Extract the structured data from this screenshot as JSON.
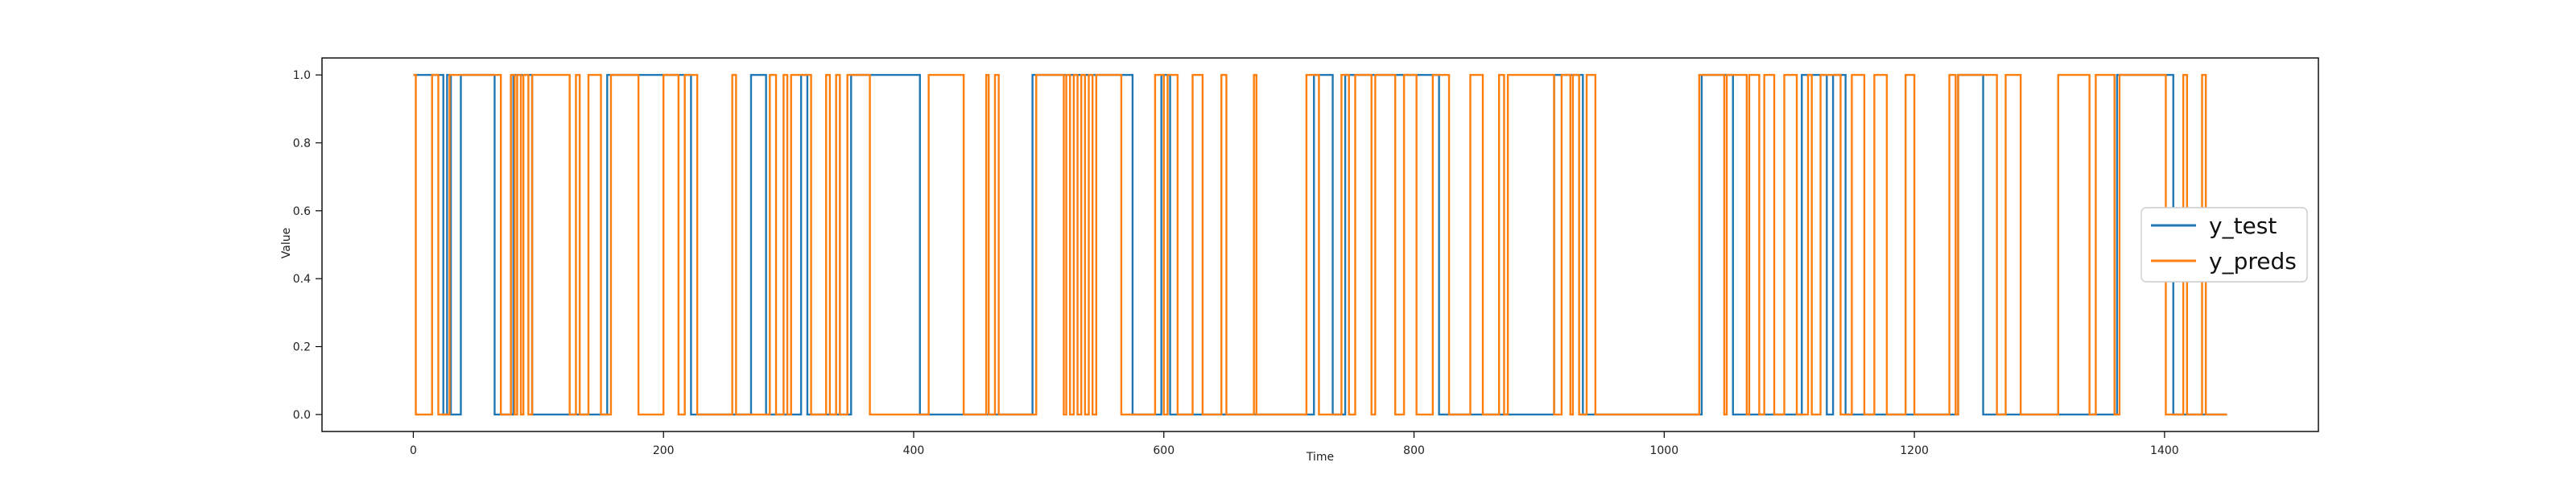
{
  "chart_data": {
    "type": "line",
    "title": "",
    "xlabel": "Time",
    "ylabel": "Value",
    "xlim": [
      -73,
      1523
    ],
    "ylim": [
      -0.05,
      1.05
    ],
    "xticks": [
      0,
      200,
      400,
      600,
      800,
      1000,
      1200,
      1400
    ],
    "xtick_labels": [
      "0",
      "200",
      "400",
      "600",
      "800",
      "1000",
      "1200",
      "1400"
    ],
    "yticks": [
      0.0,
      0.2,
      0.4,
      0.6,
      0.8,
      1.0
    ],
    "ytick_labels": [
      "0.0",
      "0.2",
      "0.4",
      "0.6",
      "0.8",
      "1.0"
    ],
    "grid": false,
    "legend_position": "right-center",
    "series": [
      {
        "name": "y_test",
        "color": "#1f77b4",
        "step_points": [
          [
            0,
            1
          ],
          [
            24,
            1
          ],
          [
            24,
            0
          ],
          [
            27,
            0
          ],
          [
            27,
            1
          ],
          [
            30,
            1
          ],
          [
            30,
            0
          ],
          [
            38,
            0
          ],
          [
            38,
            1
          ],
          [
            65,
            1
          ],
          [
            65,
            0
          ],
          [
            80,
            0
          ],
          [
            80,
            1
          ],
          [
            95,
            1
          ],
          [
            95,
            0
          ],
          [
            155,
            0
          ],
          [
            155,
            1
          ],
          [
            222,
            1
          ],
          [
            222,
            0
          ],
          [
            270,
            0
          ],
          [
            270,
            1
          ],
          [
            282,
            1
          ],
          [
            282,
            0
          ],
          [
            310,
            0
          ],
          [
            310,
            1
          ],
          [
            315,
            1
          ],
          [
            315,
            0
          ],
          [
            350,
            0
          ],
          [
            350,
            1
          ],
          [
            405,
            1
          ],
          [
            405,
            0
          ],
          [
            495,
            0
          ],
          [
            495,
            1
          ],
          [
            575,
            1
          ],
          [
            575,
            0
          ],
          [
            598,
            0
          ],
          [
            598,
            1
          ],
          [
            605,
            1
          ],
          [
            605,
            0
          ],
          [
            720,
            0
          ],
          [
            720,
            1
          ],
          [
            735,
            1
          ],
          [
            735,
            0
          ],
          [
            745,
            0
          ],
          [
            745,
            1
          ],
          [
            820,
            1
          ],
          [
            820,
            0
          ],
          [
            912,
            0
          ],
          [
            912,
            1
          ],
          [
            935,
            1
          ],
          [
            935,
            0
          ],
          [
            1030,
            0
          ],
          [
            1030,
            1
          ],
          [
            1055,
            1
          ],
          [
            1055,
            0
          ],
          [
            1110,
            0
          ],
          [
            1110,
            1
          ],
          [
            1130,
            1
          ],
          [
            1130,
            0
          ],
          [
            1135,
            0
          ],
          [
            1135,
            1
          ],
          [
            1145,
            1
          ],
          [
            1145,
            0
          ],
          [
            1235,
            0
          ],
          [
            1235,
            1
          ],
          [
            1255,
            1
          ],
          [
            1255,
            0
          ],
          [
            1362,
            0
          ],
          [
            1362,
            1
          ],
          [
            1407,
            1
          ],
          [
            1407,
            0
          ],
          [
            1450,
            0
          ]
        ]
      },
      {
        "name": "y_preds",
        "color": "#ff7f0e",
        "step_points": [
          [
            0,
            1
          ],
          [
            2,
            1
          ],
          [
            2,
            0
          ],
          [
            15,
            0
          ],
          [
            15,
            1
          ],
          [
            20,
            1
          ],
          [
            20,
            0
          ],
          [
            29,
            0
          ],
          [
            29,
            1
          ],
          [
            70,
            1
          ],
          [
            70,
            0
          ],
          [
            78,
            0
          ],
          [
            78,
            1
          ],
          [
            81,
            1
          ],
          [
            81,
            0
          ],
          [
            83,
            0
          ],
          [
            83,
            1
          ],
          [
            86,
            1
          ],
          [
            86,
            0
          ],
          [
            88,
            0
          ],
          [
            88,
            1
          ],
          [
            92,
            1
          ],
          [
            92,
            0
          ],
          [
            95,
            0
          ],
          [
            95,
            1
          ],
          [
            125,
            1
          ],
          [
            125,
            0
          ],
          [
            130,
            0
          ],
          [
            130,
            1
          ],
          [
            133,
            1
          ],
          [
            133,
            0
          ],
          [
            140,
            0
          ],
          [
            140,
            1
          ],
          [
            150,
            1
          ],
          [
            150,
            0
          ],
          [
            158,
            0
          ],
          [
            158,
            1
          ],
          [
            180,
            1
          ],
          [
            180,
            0
          ],
          [
            200,
            0
          ],
          [
            200,
            1
          ],
          [
            212,
            1
          ],
          [
            212,
            0
          ],
          [
            217,
            0
          ],
          [
            217,
            1
          ],
          [
            227,
            1
          ],
          [
            227,
            0
          ],
          [
            255,
            0
          ],
          [
            255,
            1
          ],
          [
            258,
            1
          ],
          [
            258,
            0
          ],
          [
            285,
            0
          ],
          [
            285,
            1
          ],
          [
            290,
            1
          ],
          [
            290,
            0
          ],
          [
            296,
            0
          ],
          [
            296,
            1
          ],
          [
            299,
            1
          ],
          [
            299,
            0
          ],
          [
            302,
            0
          ],
          [
            302,
            1
          ],
          [
            318,
            1
          ],
          [
            318,
            0
          ],
          [
            330,
            0
          ],
          [
            330,
            1
          ],
          [
            333,
            1
          ],
          [
            333,
            0
          ],
          [
            338,
            0
          ],
          [
            338,
            1
          ],
          [
            341,
            1
          ],
          [
            341,
            0
          ],
          [
            347,
            0
          ],
          [
            347,
            1
          ],
          [
            365,
            1
          ],
          [
            365,
            0
          ],
          [
            412,
            0
          ],
          [
            412,
            1
          ],
          [
            440,
            1
          ],
          [
            440,
            0
          ],
          [
            458,
            0
          ],
          [
            458,
            1
          ],
          [
            460,
            1
          ],
          [
            460,
            0
          ],
          [
            465,
            0
          ],
          [
            465,
            1
          ],
          [
            468,
            1
          ],
          [
            468,
            0
          ],
          [
            498,
            0
          ],
          [
            498,
            1
          ],
          [
            520,
            1
          ],
          [
            520,
            0
          ],
          [
            522,
            0
          ],
          [
            522,
            1
          ],
          [
            525,
            1
          ],
          [
            525,
            0
          ],
          [
            528,
            0
          ],
          [
            528,
            1
          ],
          [
            531,
            1
          ],
          [
            531,
            0
          ],
          [
            534,
            0
          ],
          [
            534,
            1
          ],
          [
            537,
            1
          ],
          [
            537,
            0
          ],
          [
            540,
            0
          ],
          [
            540,
            1
          ],
          [
            543,
            1
          ],
          [
            543,
            0
          ],
          [
            546,
            0
          ],
          [
            546,
            1
          ],
          [
            566,
            1
          ],
          [
            566,
            0
          ],
          [
            593,
            0
          ],
          [
            593,
            1
          ],
          [
            600,
            1
          ],
          [
            600,
            0
          ],
          [
            603,
            0
          ],
          [
            603,
            1
          ],
          [
            611,
            1
          ],
          [
            611,
            0
          ],
          [
            623,
            0
          ],
          [
            623,
            1
          ],
          [
            631,
            1
          ],
          [
            631,
            0
          ],
          [
            646,
            0
          ],
          [
            646,
            1
          ],
          [
            650,
            1
          ],
          [
            650,
            0
          ],
          [
            672,
            0
          ],
          [
            672,
            1
          ],
          [
            674,
            1
          ],
          [
            674,
            0
          ],
          [
            714,
            0
          ],
          [
            714,
            1
          ],
          [
            724,
            1
          ],
          [
            724,
            0
          ],
          [
            742,
            0
          ],
          [
            742,
            1
          ],
          [
            748,
            1
          ],
          [
            748,
            0
          ],
          [
            753,
            0
          ],
          [
            753,
            1
          ],
          [
            766,
            1
          ],
          [
            766,
            0
          ],
          [
            769,
            0
          ],
          [
            769,
            1
          ],
          [
            785,
            1
          ],
          [
            785,
            0
          ],
          [
            792,
            0
          ],
          [
            792,
            1
          ],
          [
            802,
            1
          ],
          [
            802,
            0
          ],
          [
            815,
            0
          ],
          [
            815,
            1
          ],
          [
            828,
            1
          ],
          [
            828,
            0
          ],
          [
            845,
            0
          ],
          [
            845,
            1
          ],
          [
            855,
            1
          ],
          [
            855,
            0
          ],
          [
            868,
            0
          ],
          [
            868,
            1
          ],
          [
            872,
            1
          ],
          [
            872,
            0
          ],
          [
            875,
            0
          ],
          [
            875,
            1
          ],
          [
            912,
            1
          ],
          [
            912,
            0
          ],
          [
            918,
            0
          ],
          [
            918,
            1
          ],
          [
            925,
            1
          ],
          [
            925,
            0
          ],
          [
            927,
            0
          ],
          [
            927,
            1
          ],
          [
            932,
            1
          ],
          [
            932,
            0
          ],
          [
            938,
            0
          ],
          [
            938,
            1
          ],
          [
            945,
            1
          ],
          [
            945,
            0
          ],
          [
            1028,
            0
          ],
          [
            1028,
            1
          ],
          [
            1048,
            1
          ],
          [
            1048,
            0
          ],
          [
            1050,
            0
          ],
          [
            1050,
            1
          ],
          [
            1066,
            1
          ],
          [
            1066,
            0
          ],
          [
            1068,
            0
          ],
          [
            1068,
            1
          ],
          [
            1076,
            1
          ],
          [
            1076,
            0
          ],
          [
            1080,
            0
          ],
          [
            1080,
            1
          ],
          [
            1088,
            1
          ],
          [
            1088,
            0
          ],
          [
            1096,
            0
          ],
          [
            1096,
            1
          ],
          [
            1106,
            1
          ],
          [
            1106,
            0
          ],
          [
            1115,
            0
          ],
          [
            1115,
            1
          ],
          [
            1118,
            1
          ],
          [
            1118,
            0
          ],
          [
            1125,
            0
          ],
          [
            1125,
            1
          ],
          [
            1141,
            1
          ],
          [
            1141,
            0
          ],
          [
            1150,
            0
          ],
          [
            1150,
            1
          ],
          [
            1160,
            1
          ],
          [
            1160,
            0
          ],
          [
            1168,
            0
          ],
          [
            1168,
            1
          ],
          [
            1178,
            1
          ],
          [
            1178,
            0
          ],
          [
            1193,
            0
          ],
          [
            1193,
            1
          ],
          [
            1200,
            1
          ],
          [
            1200,
            0
          ],
          [
            1228,
            0
          ],
          [
            1228,
            1
          ],
          [
            1233,
            1
          ],
          [
            1233,
            0
          ],
          [
            1235,
            0
          ],
          [
            1235,
            1
          ],
          [
            1266,
            1
          ],
          [
            1266,
            0
          ],
          [
            1273,
            0
          ],
          [
            1273,
            1
          ],
          [
            1285,
            1
          ],
          [
            1285,
            0
          ],
          [
            1315,
            0
          ],
          [
            1315,
            1
          ],
          [
            1340,
            1
          ],
          [
            1340,
            0
          ],
          [
            1345,
            0
          ],
          [
            1345,
            1
          ],
          [
            1360,
            1
          ],
          [
            1360,
            0
          ],
          [
            1364,
            0
          ],
          [
            1364,
            1
          ],
          [
            1401,
            1
          ],
          [
            1401,
            0
          ],
          [
            1415,
            0
          ],
          [
            1415,
            1
          ],
          [
            1418,
            1
          ],
          [
            1418,
            0
          ],
          [
            1430,
            0
          ],
          [
            1430,
            1
          ],
          [
            1433,
            1
          ],
          [
            1433,
            0
          ],
          [
            1450,
            0
          ]
        ]
      }
    ]
  }
}
